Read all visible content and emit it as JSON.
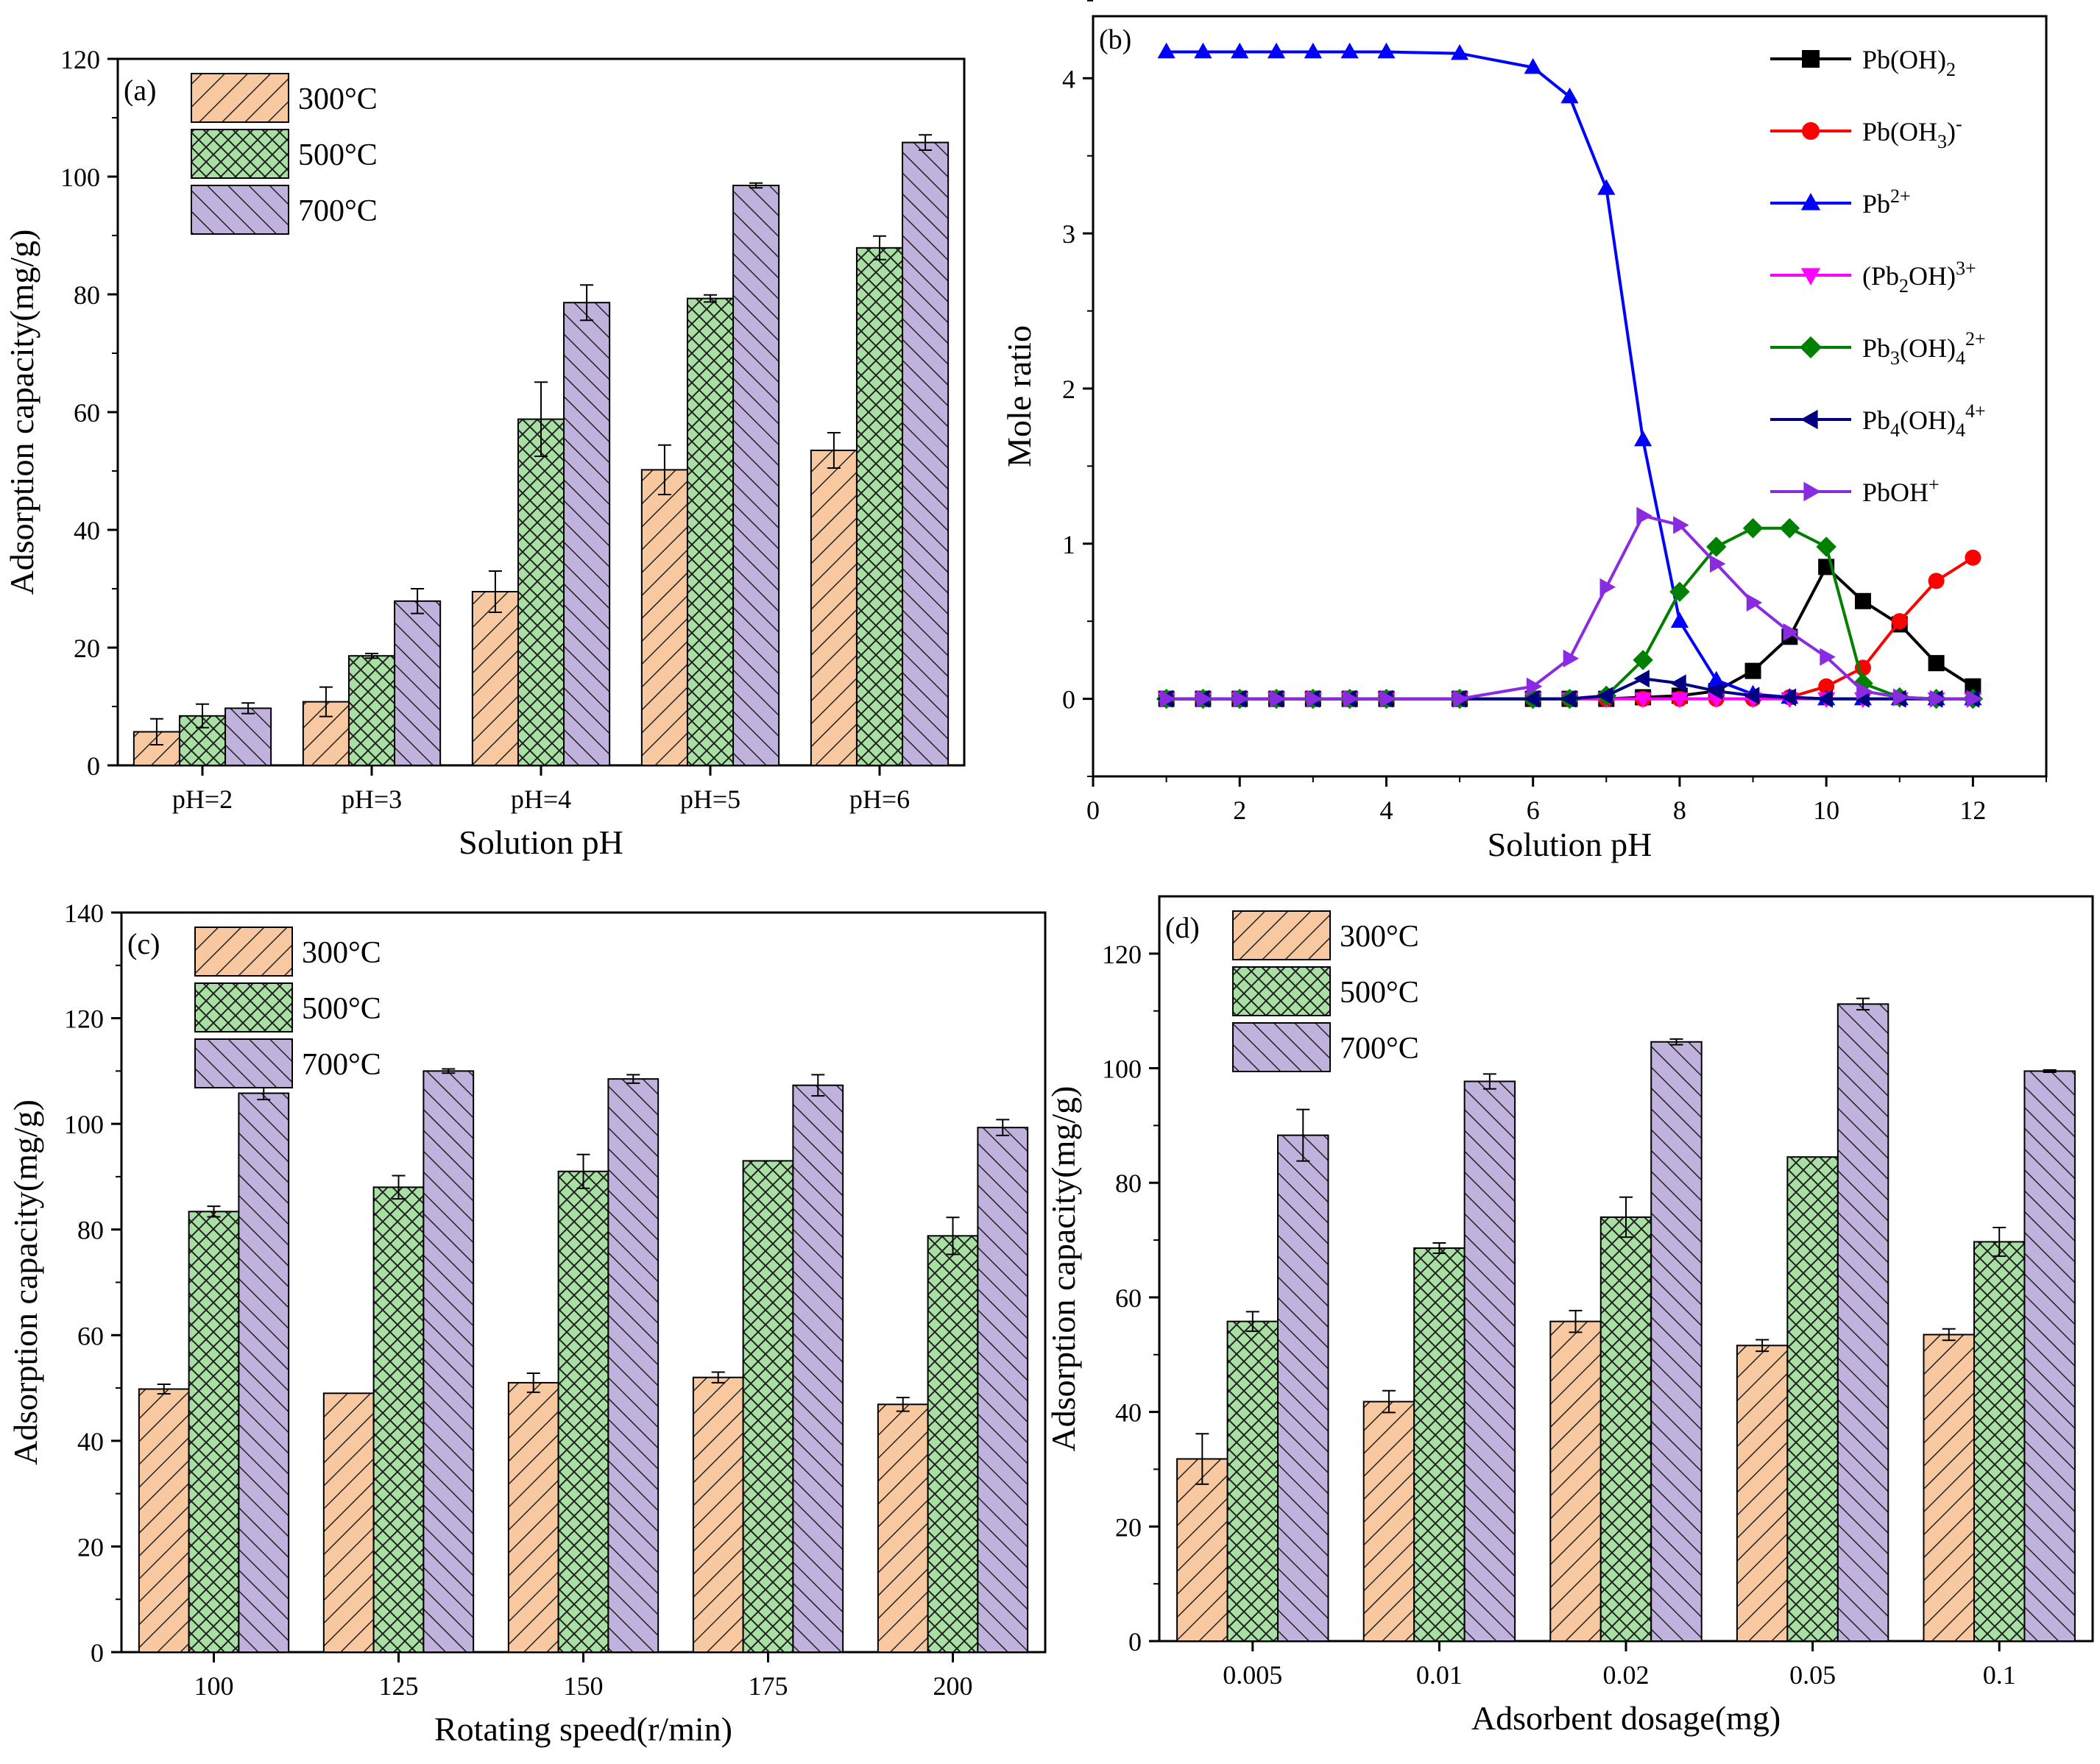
{
  "figure": {
    "panels": [
      "a",
      "b",
      "c",
      "d"
    ]
  },
  "colors": {
    "300": "#f8c9a0",
    "500": "#a8e0a4",
    "700": "#c0b2dc",
    "hatch": "#222222"
  },
  "chart_data": [
    {
      "id": "a",
      "type": "bar",
      "panel_label": "(a)",
      "xlabel": "Solution pH",
      "ylabel": "Adsorption capacity(mg/g)",
      "categories": [
        "pH=2",
        "pH=3",
        "pH=4",
        "pH=5",
        "pH=6"
      ],
      "ylim": [
        0,
        120
      ],
      "yticks": [
        0,
        20,
        40,
        60,
        80,
        100,
        120
      ],
      "legend_position": "top-left",
      "series": [
        {
          "name": "300°C",
          "values": [
            5.7,
            10.8,
            29.5,
            50.2,
            53.5
          ],
          "errors": [
            2.2,
            2.5,
            3.5,
            4.2,
            3.0
          ]
        },
        {
          "name": "500°C",
          "values": [
            8.4,
            18.6,
            58.8,
            79.3,
            87.9
          ],
          "errors": [
            2.0,
            0.4,
            6.3,
            0.6,
            2.0
          ]
        },
        {
          "name": "700°C",
          "values": [
            9.7,
            27.9,
            78.6,
            98.5,
            105.8
          ],
          "errors": [
            0.9,
            2.1,
            3.0,
            0.4,
            1.3
          ]
        }
      ]
    },
    {
      "id": "b",
      "type": "line",
      "panel_label": "(b)",
      "xlabel": "Solution pH",
      "ylabel": "Mole ratio",
      "xlim": [
        0,
        13
      ],
      "ylim": [
        -0.5,
        4.4
      ],
      "xticks": [
        0,
        2,
        4,
        6,
        8,
        10,
        12
      ],
      "yticks": [
        0,
        1,
        2,
        3,
        4
      ],
      "legend_position": "top-right",
      "x": [
        1,
        1.5,
        2,
        2.5,
        3,
        3.5,
        4,
        5,
        6,
        6.5,
        7,
        7.5,
        8,
        8.5,
        9,
        9.5,
        10,
        10.5,
        11,
        11.5,
        12
      ],
      "series": [
        {
          "name": "Pb(OH)2",
          "label_main": "Pb(OH)",
          "label_sub": "2",
          "label_sup": "",
          "label_tail": "",
          "color": "#000000",
          "marker": "square",
          "values": [
            0,
            0,
            0,
            0,
            0,
            0,
            0,
            0,
            0,
            0,
            0,
            0.01,
            0.02,
            0.05,
            0.18,
            0.4,
            0.85,
            0.63,
            0.48,
            0.23,
            0.08
          ]
        },
        {
          "name": "Pb(OH3)-",
          "label_main": "Pb(OH",
          "label_sub": "3",
          "label_sup": "-",
          "label_tail": ")",
          "color": "#ff0000",
          "marker": "circle",
          "values": [
            0,
            0,
            0,
            0,
            0,
            0,
            0,
            0,
            0,
            0,
            0,
            0,
            0,
            0,
            0,
            0.01,
            0.08,
            0.2,
            0.5,
            0.76,
            0.91
          ]
        },
        {
          "name": "Pb2+",
          "label_main": "Pb",
          "label_sub": "",
          "label_sup": "2+",
          "label_tail": "",
          "color": "#0000ff",
          "marker": "triangle-up",
          "values": [
            4.17,
            4.17,
            4.17,
            4.17,
            4.17,
            4.17,
            4.17,
            4.16,
            4.07,
            3.88,
            3.29,
            1.67,
            0.5,
            0.12,
            0.03,
            0.01,
            0,
            0,
            0,
            0,
            0
          ]
        },
        {
          "name": "(Pb2OH)3+",
          "label_main": "(Pb",
          "label_sub": "2",
          "label_sup": "3+",
          "label_tail": "OH)",
          "color": "#ff00ff",
          "marker": "triangle-down",
          "values": [
            0,
            0,
            0,
            0,
            0,
            0,
            0,
            0,
            0,
            0,
            0,
            0,
            0,
            0,
            0,
            0,
            0,
            0,
            0,
            0,
            0
          ]
        },
        {
          "name": "Pb3(OH)42+",
          "label_main": "Pb",
          "label_sub": "3",
          "label_sup": "2+",
          "label_tail": "(OH)",
          "color": "#008000",
          "marker": "diamond",
          "values": [
            0,
            0,
            0,
            0,
            0,
            0,
            0,
            0,
            0,
            0,
            0.02,
            0.25,
            0.69,
            0.98,
            1.1,
            1.1,
            0.98,
            0.1,
            0.01,
            0,
            0
          ]
        },
        {
          "name": "Pb4(OH)44+",
          "label_main": "Pb",
          "label_sub": "4",
          "label_sup": "4+",
          "label_tail": "(OH)",
          "color": "#000080",
          "marker": "triangle-left",
          "values": [
            0,
            0,
            0,
            0,
            0,
            0,
            0,
            0,
            0,
            0,
            0.02,
            0.13,
            0.1,
            0.05,
            0.02,
            0.01,
            0,
            0,
            0,
            0,
            0
          ]
        },
        {
          "name": "PbOH+",
          "label_main": "PbOH",
          "label_sub": "",
          "label_sup": "+",
          "label_tail": "",
          "color": "#8a2be2",
          "marker": "triangle-right",
          "values": [
            0,
            0,
            0,
            0,
            0,
            0,
            0,
            0,
            0.08,
            0.26,
            0.72,
            1.18,
            1.12,
            0.87,
            0.62,
            0.43,
            0.27,
            0.05,
            0.01,
            0,
            0
          ]
        }
      ]
    },
    {
      "id": "c",
      "type": "bar",
      "panel_label": "(c)",
      "xlabel": "Rotating speed(r/min)",
      "ylabel": "Adsorption capacity(mg/g)",
      "categories": [
        "100",
        "125",
        "150",
        "175",
        "200"
      ],
      "ylim": [
        0,
        140
      ],
      "yticks": [
        0,
        20,
        40,
        60,
        80,
        100,
        120,
        140
      ],
      "legend_position": "top-left",
      "series": [
        {
          "name": "300°C",
          "values": [
            49.8,
            49.0,
            51.0,
            52.0,
            46.9
          ],
          "errors": [
            0.9,
            0,
            1.8,
            1.0,
            1.3
          ]
        },
        {
          "name": "500°C",
          "values": [
            83.4,
            88.0,
            91.0,
            93.0,
            78.8
          ],
          "errors": [
            1.0,
            2.2,
            3.2,
            0,
            3.5
          ]
        },
        {
          "name": "700°C",
          "values": [
            105.8,
            110.0,
            108.5,
            107.3,
            99.3
          ],
          "errors": [
            1.2,
            0.4,
            0.8,
            2.0,
            1.5
          ]
        }
      ]
    },
    {
      "id": "d",
      "type": "bar",
      "panel_label": "(d)",
      "xlabel": "Adsorbent dosage(mg)",
      "ylabel": "Adsorption capacity(mg/g)",
      "categories": [
        "0.005",
        "0.01",
        "0.02",
        "0.05",
        "0.1"
      ],
      "ylim": [
        0,
        130
      ],
      "yticks": [
        0,
        20,
        40,
        60,
        80,
        100,
        120
      ],
      "legend_position": "top-left",
      "series": [
        {
          "name": "300°C",
          "values": [
            31.8,
            41.8,
            55.8,
            51.6,
            53.5
          ],
          "errors": [
            4.4,
            1.9,
            1.9,
            1.0,
            1.0
          ]
        },
        {
          "name": "500°C",
          "values": [
            55.8,
            68.6,
            74.0,
            84.5,
            69.7
          ],
          "errors": [
            1.7,
            0.9,
            3.5,
            0,
            2.5
          ]
        },
        {
          "name": "700°C",
          "values": [
            88.3,
            97.7,
            104.6,
            111.2,
            99.5
          ],
          "errors": [
            4.5,
            1.3,
            0.5,
            1.0,
            0.2
          ]
        }
      ]
    }
  ]
}
